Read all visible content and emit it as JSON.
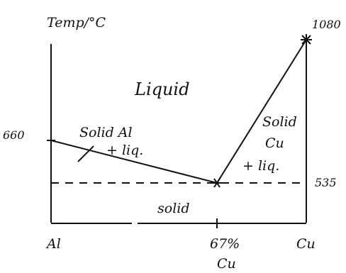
{
  "diagram": {
    "axis_label": "Temp/°C",
    "temperatures": {
      "al_melt": "660",
      "cu_melt": "1080",
      "eutectic": "535"
    },
    "regions": {
      "liquid": "Liquid",
      "solid_al_liq_line1": "Solid Al",
      "solid_al_liq_line2": "+ liq.",
      "solid_cu_liq_line1": "Solid",
      "solid_cu_liq_line2": "Cu",
      "solid_cu_liq_line3": "+ liq.",
      "solid": "solid"
    },
    "composition": {
      "left": "Al",
      "eutectic_pct": "67%",
      "eutectic_el": "Cu",
      "right": "Cu"
    },
    "colors": {
      "ink": "#111111",
      "background": "#ffffff"
    }
  }
}
